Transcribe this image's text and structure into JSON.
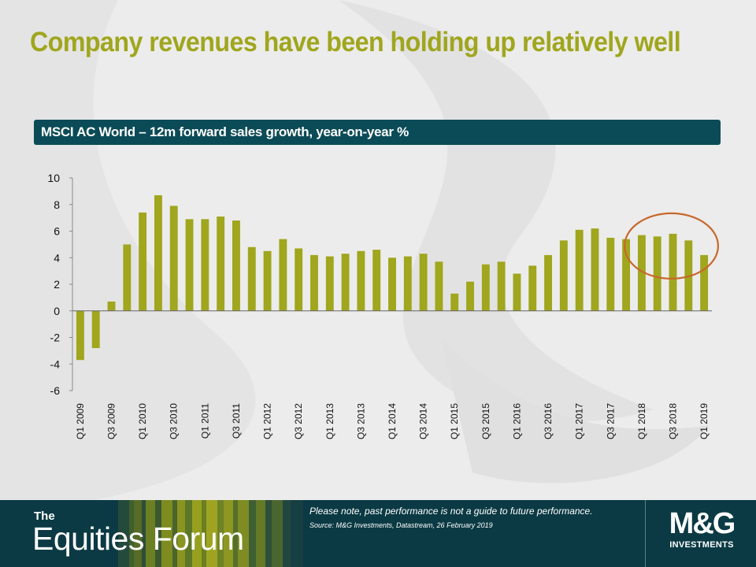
{
  "slide": {
    "title": "Company revenues have been holding up relatively well"
  },
  "chart_header": {
    "label": "MSCI AC World – 12m forward sales growth, year-on-year %"
  },
  "chart_data": {
    "type": "bar",
    "title": "",
    "xlabel": "",
    "ylabel": "",
    "ylim": [
      -6,
      10
    ],
    "yticks": [
      10,
      8,
      6,
      4,
      2,
      0,
      -2,
      -4,
      -6
    ],
    "grid": false,
    "bar_color": "#a0a61d",
    "highlight_color": "#c8682a",
    "highlight_range": [
      "Q1 2018",
      "Q1 2019"
    ],
    "categories": [
      "Q1 2009",
      "Q2 2009",
      "Q3 2009",
      "Q4 2009",
      "Q1 2010",
      "Q2 2010",
      "Q3 2010",
      "Q4 2010",
      "Q1 2011",
      "Q2 2011",
      "Q3 2011",
      "Q4 2011",
      "Q1 2012",
      "Q2 2012",
      "Q3 2012",
      "Q4 2012",
      "Q1 2013",
      "Q2 2013",
      "Q3 2013",
      "Q4 2013",
      "Q1 2014",
      "Q2 2014",
      "Q3 2014",
      "Q4 2014",
      "Q1 2015",
      "Q2 2015",
      "Q3 2015",
      "Q4 2015",
      "Q1 2016",
      "Q2 2016",
      "Q3 2016",
      "Q4 2016",
      "Q1 2017",
      "Q2 2017",
      "Q3 2017",
      "Q4 2017",
      "Q1 2018",
      "Q2 2018",
      "Q3 2018",
      "Q4 2018",
      "Q1 2019"
    ],
    "tick_labels": [
      "Q1 2009",
      "Q3 2009",
      "Q1 2010",
      "Q3 2010",
      "Q1 2011",
      "Q3 2011",
      "Q1 2012",
      "Q3 2012",
      "Q1 2013",
      "Q3 2013",
      "Q1 2014",
      "Q3 2014",
      "Q1 2015",
      "Q3 2015",
      "Q1 2016",
      "Q3 2016",
      "Q1 2017",
      "Q3 2017",
      "Q1 2018",
      "Q3 2018",
      "Q1 2019"
    ],
    "values": [
      -3.7,
      -2.8,
      0.7,
      5.0,
      7.4,
      8.7,
      7.9,
      6.9,
      6.9,
      7.1,
      6.8,
      4.8,
      4.5,
      5.4,
      4.7,
      4.2,
      4.1,
      4.3,
      4.5,
      4.6,
      4.0,
      4.1,
      4.3,
      3.7,
      1.3,
      2.2,
      3.5,
      3.7,
      2.8,
      3.4,
      4.2,
      5.3,
      6.1,
      6.2,
      5.5,
      5.4,
      5.7,
      5.6,
      5.8,
      5.3,
      4.2
    ]
  },
  "footer": {
    "brand_small": "The",
    "brand_large": "Equities Forum",
    "note": "Please note, past performance is not a guide to future performance.",
    "source": "Source: M&G Investments, Datastream, 26 February 2019",
    "logo_mark": "M&G",
    "logo_sub": "INVESTMENTS",
    "background": "#0b3a44"
  }
}
